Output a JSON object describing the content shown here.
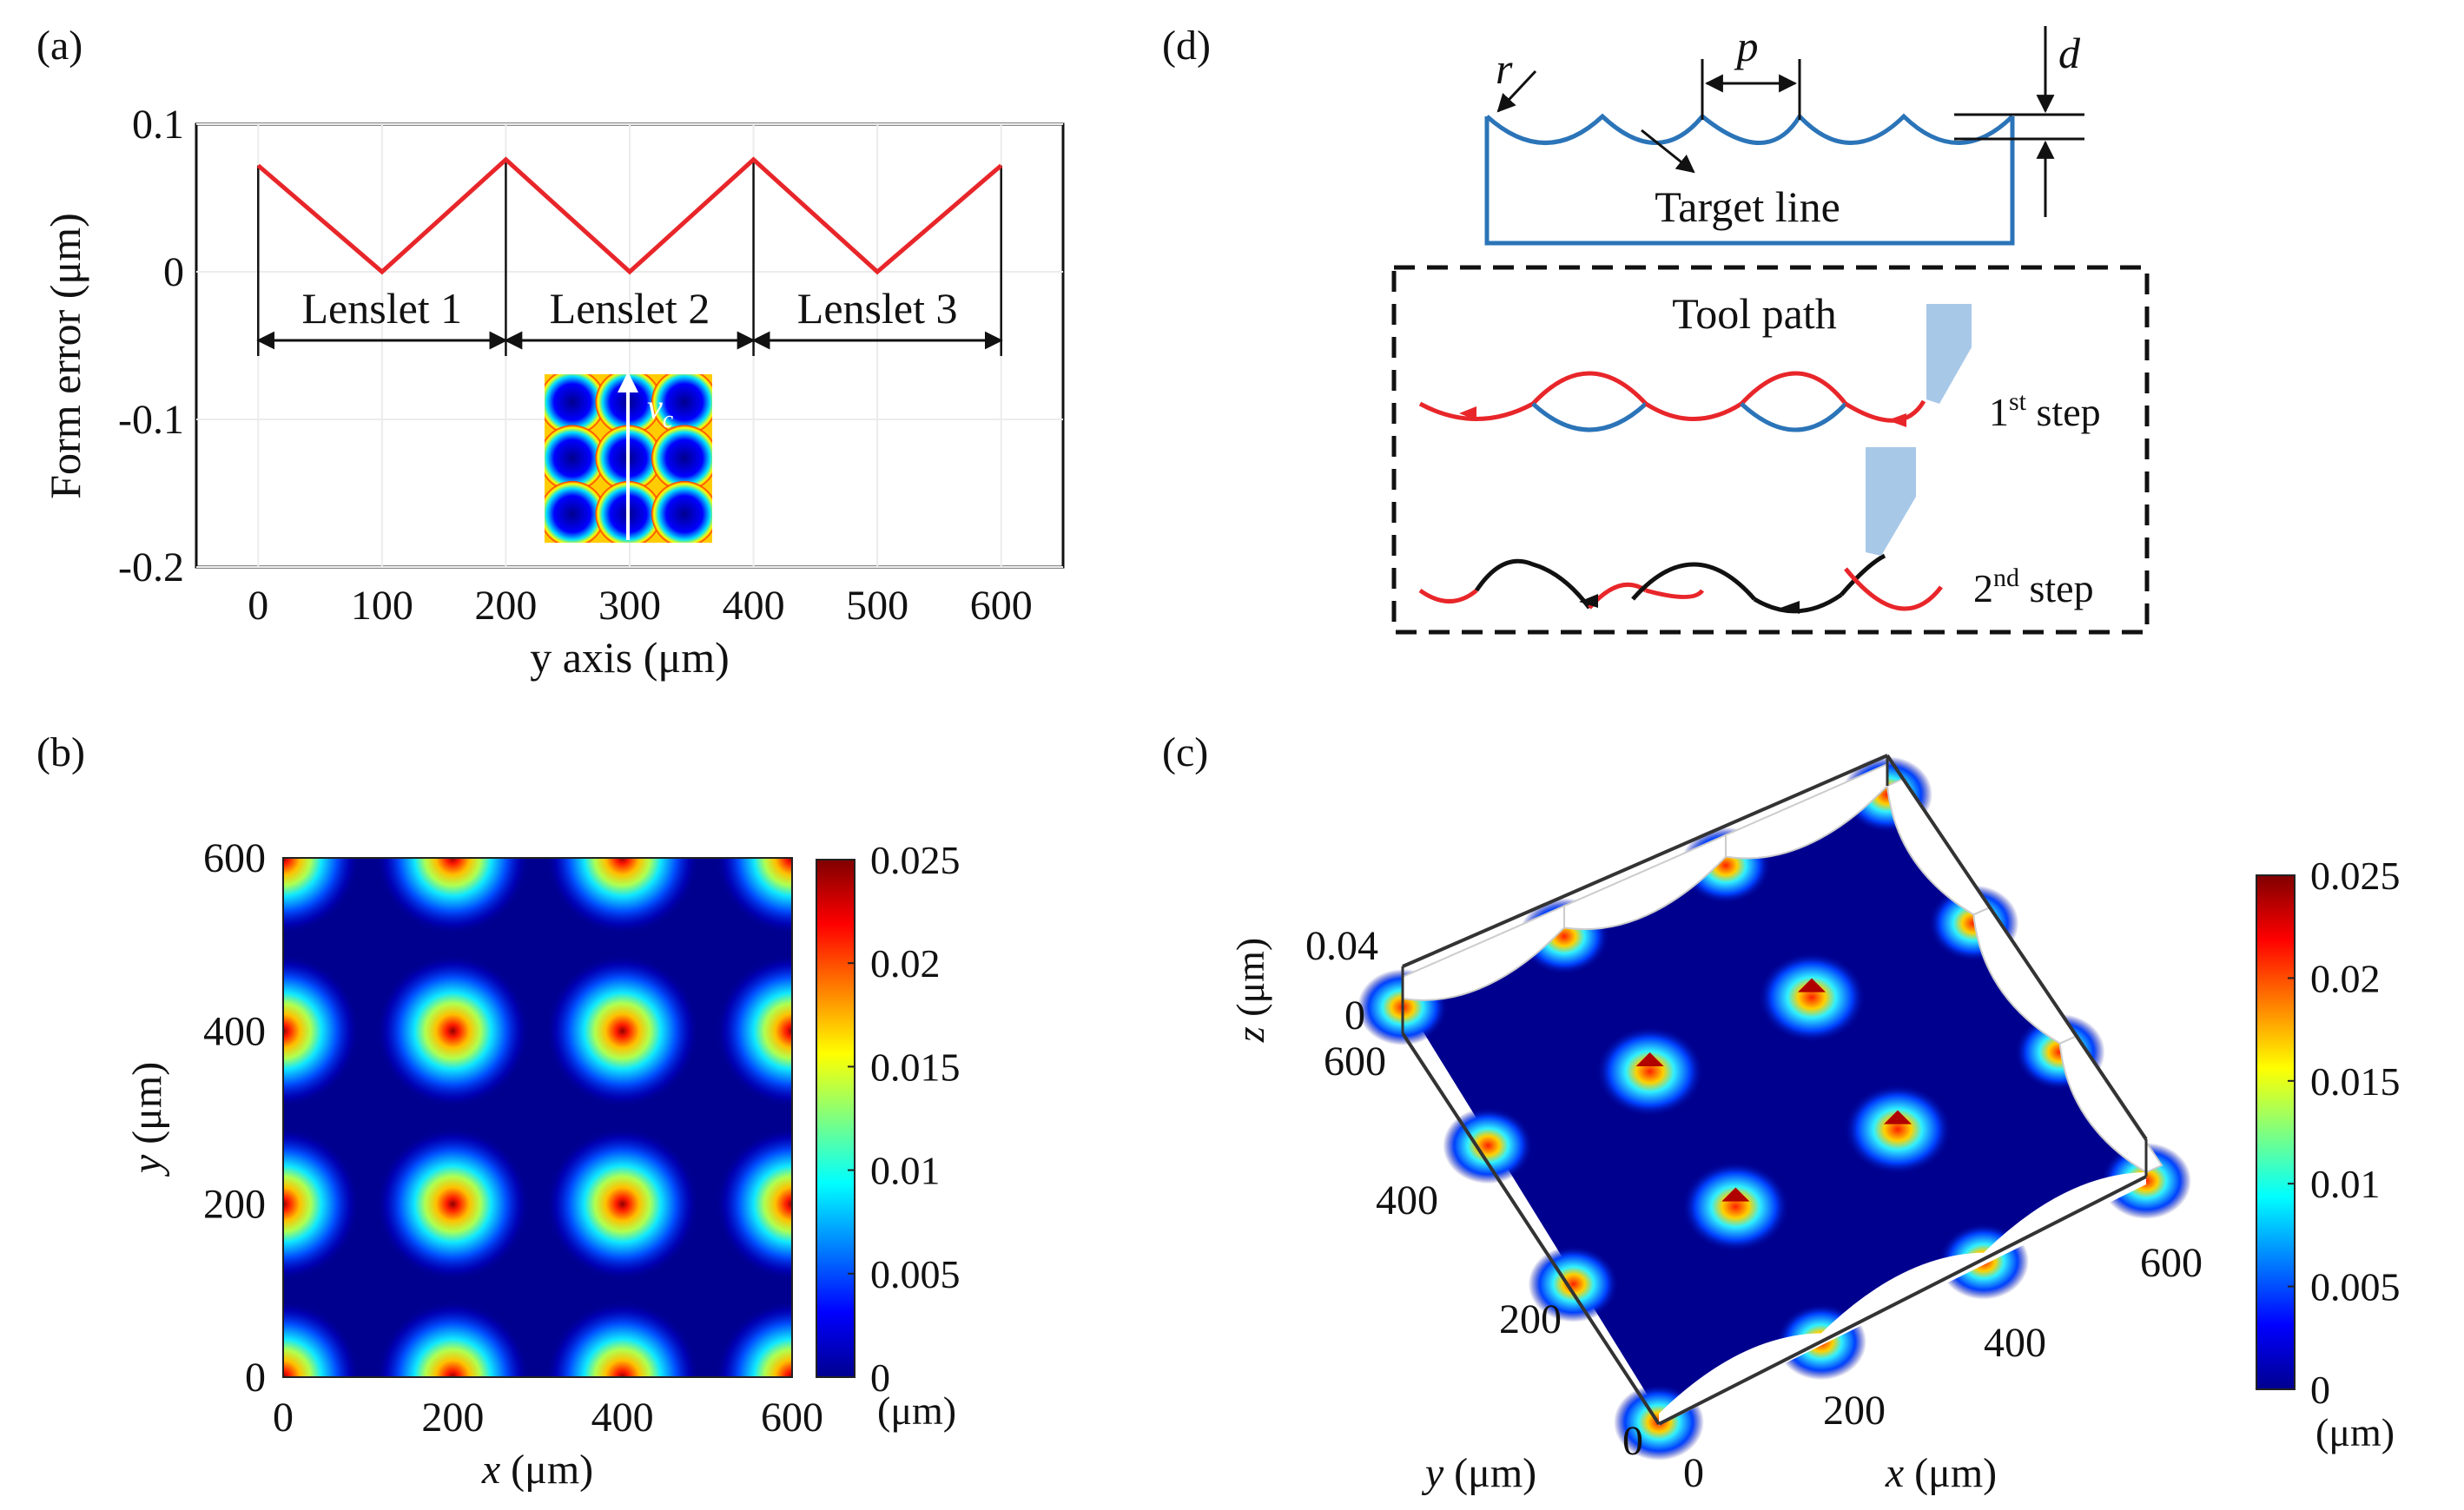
{
  "panels": {
    "a": {
      "label": "(a)",
      "chart_type": "line",
      "ylabel": "Form error (μm)",
      "xlabel": "y axis (μm)",
      "xlim": [
        -50,
        650
      ],
      "ylim": [
        -0.2,
        0.1
      ],
      "xticks": [
        0,
        100,
        200,
        300,
        400,
        500,
        600
      ],
      "yticks": [
        0.1,
        0,
        -0.1,
        -0.2
      ],
      "ytick_labels": [
        "0.1",
        "0",
        "-0.1",
        "-0.2"
      ],
      "series": [
        {
          "name": "form error",
          "color": "#e8262a",
          "x": [
            0,
            100,
            200,
            300,
            400,
            500,
            600
          ],
          "y": [
            0.072,
            0.0,
            0.076,
            0.0,
            0.076,
            0.0,
            0.072
          ]
        }
      ],
      "lenslets": [
        {
          "label": "Lenslet 1",
          "range": [
            0,
            200
          ]
        },
        {
          "label": "Lenslet 2",
          "range": [
            200,
            400
          ]
        },
        {
          "label": "Lenslet 3",
          "range": [
            400,
            600
          ]
        }
      ],
      "inset_arrow_label": "v",
      "inset_arrow_sub": "c"
    },
    "b": {
      "label": "(b)",
      "chart_type": "heatmap",
      "xlabel_var": "x",
      "ylabel_var": "y",
      "unit": "(μm)",
      "xlim": [
        0,
        600
      ],
      "ylim": [
        0,
        600
      ],
      "xticks": [
        0,
        200,
        400,
        600
      ],
      "yticks": [
        600,
        400,
        200,
        0
      ],
      "peak_value": 0.025,
      "peaks_x": [
        0,
        200,
        400,
        600
      ],
      "peaks_y": [
        0,
        200,
        400,
        600
      ],
      "colorbar": {
        "min": 0,
        "max": 0.025,
        "ticks": [
          "0.025",
          "0.02",
          "0.015",
          "0.01",
          "0.005",
          "0"
        ],
        "unit": "(μm)"
      }
    },
    "c": {
      "label": "(c)",
      "chart_type": "surface3d",
      "xlabel_var": "x",
      "ylabel_var": "y",
      "zlabel_var": "z",
      "unit": "(μm)",
      "x_ticks": [
        "0",
        "200",
        "400",
        "600"
      ],
      "y_ticks": [
        "600",
        "400",
        "200",
        "0"
      ],
      "z_ticks": [
        "0.04",
        "0"
      ],
      "colorbar": {
        "min": 0,
        "max": 0.025,
        "ticks": [
          "0.025",
          "0.02",
          "0.015",
          "0.01",
          "0.005",
          "0"
        ],
        "unit": "(μm)"
      }
    },
    "d": {
      "label": "(d)",
      "chart_type": "diagram",
      "r_label": "r",
      "p_label": "p",
      "d_label": "d",
      "target_line": "Target line",
      "tool_path": "Tool path",
      "step1_main": "1",
      "step1_sup": "st",
      "step1_word": " step",
      "step2_main": "2",
      "step2_sup": "nd",
      "step2_word": " step"
    }
  },
  "colors": {
    "red": "#e8262a",
    "blue": "#2b74b8",
    "tool": "#a8c8e8",
    "heat_bg": "#00008f"
  }
}
